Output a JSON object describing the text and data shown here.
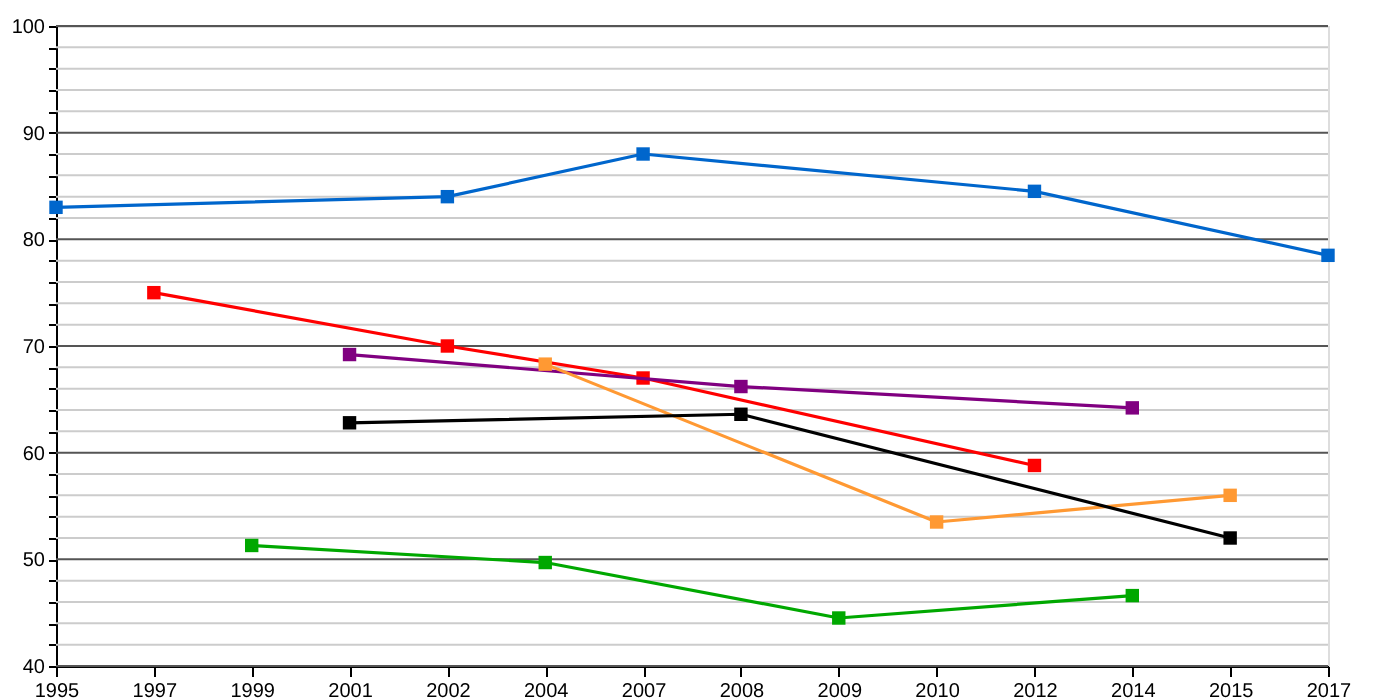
{
  "chart_data": {
    "type": "line",
    "categories": [
      "1995",
      "1997",
      "1999",
      "2001",
      "2002",
      "2004",
      "2007",
      "2008",
      "2009",
      "2010",
      "2012",
      "2014",
      "2015",
      "2017"
    ],
    "series": [
      {
        "color": "#0066cc",
        "values": [
          83,
          null,
          null,
          null,
          84,
          null,
          88,
          null,
          null,
          null,
          84.5,
          null,
          null,
          78.5
        ]
      },
      {
        "color": "#ff0000",
        "values": [
          null,
          75,
          null,
          null,
          70,
          null,
          67,
          null,
          null,
          null,
          58.8,
          null,
          null,
          null
        ]
      },
      {
        "color": "#800080",
        "values": [
          null,
          null,
          null,
          69.2,
          null,
          null,
          null,
          66.2,
          null,
          null,
          null,
          64.2,
          null,
          null
        ]
      },
      {
        "color": "#ff9933",
        "values": [
          null,
          null,
          null,
          null,
          null,
          68.3,
          null,
          null,
          null,
          53.5,
          null,
          null,
          56,
          null
        ]
      },
      {
        "color": "#000000",
        "values": [
          null,
          null,
          null,
          62.8,
          null,
          null,
          null,
          63.6,
          null,
          null,
          null,
          null,
          52,
          null
        ]
      },
      {
        "color": "#00a800",
        "values": [
          null,
          null,
          51.3,
          null,
          null,
          49.7,
          null,
          null,
          44.5,
          null,
          null,
          46.6,
          null,
          null
        ]
      }
    ],
    "ylim": [
      40,
      100
    ],
    "yticks": [
      40,
      {
        "value": 42,
        "label": null
      },
      {
        "value": 44,
        "label": null
      },
      {
        "value": 46,
        "label": null
      },
      {
        "value": 48,
        "label": null
      },
      50,
      {
        "value": 52,
        "label": null
      },
      {
        "value": 54,
        "label": null
      },
      {
        "value": 56,
        "label": null
      },
      {
        "value": 58,
        "label": null
      },
      60,
      {
        "value": 62,
        "label": null
      },
      {
        "value": 64,
        "label": null
      },
      {
        "value": 66,
        "label": null
      },
      {
        "value": 68,
        "label": null
      },
      70,
      {
        "value": 72,
        "label": null
      },
      {
        "value": 74,
        "label": null
      },
      {
        "value": 76,
        "label": null
      },
      {
        "value": 78,
        "label": null
      },
      80,
      {
        "value": 82,
        "label": null
      },
      {
        "value": 84,
        "label": null
      },
      {
        "value": 86,
        "label": null
      },
      {
        "value": 88,
        "label": null
      },
      90,
      {
        "value": 92,
        "label": null
      },
      {
        "value": 94,
        "label": null
      },
      {
        "value": 96,
        "label": null
      },
      {
        "value": 98,
        "label": null
      },
      100
    ],
    "grid": "y",
    "marker": "square",
    "line_style": "solid"
  }
}
